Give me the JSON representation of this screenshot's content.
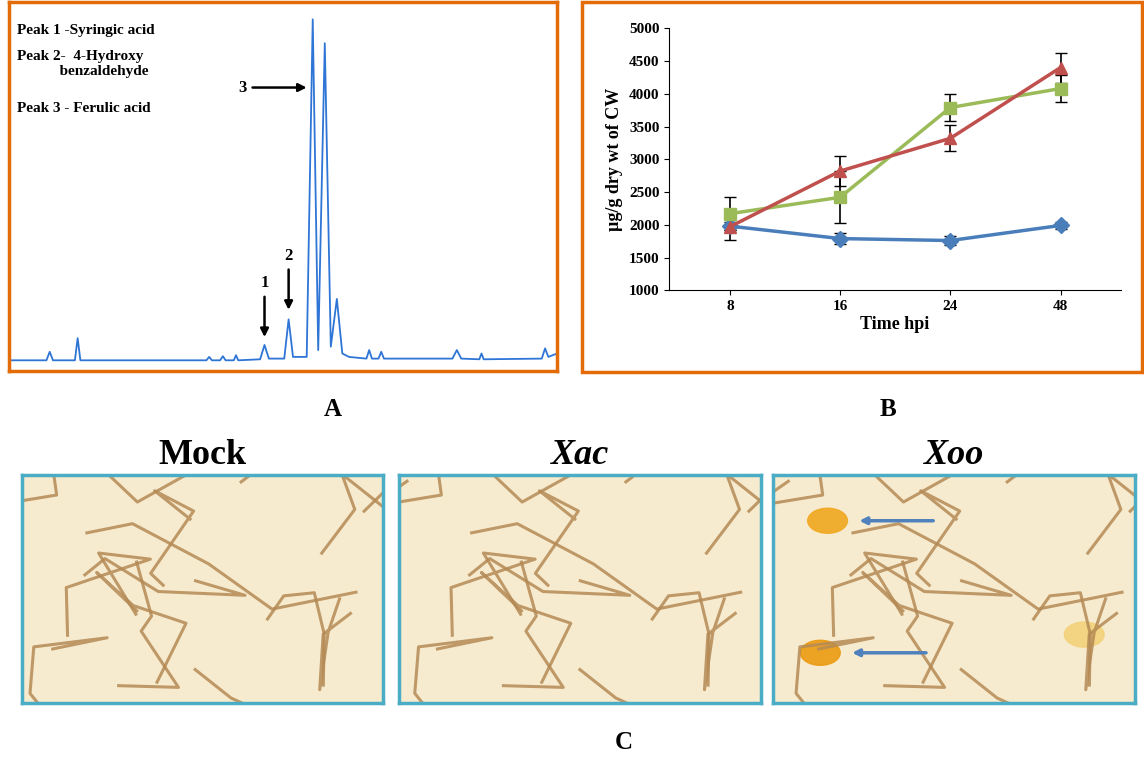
{
  "chart_data": [
    {
      "type": "line",
      "panel_label": "A",
      "notes": [
        "Peak 1 -Syringic acid",
        "Peak 2-  4-Hydroxy\n           benzaldehyde",
        "Peak 3 - Ferulic acid"
      ],
      "x": [
        0,
        6.8,
        7.4,
        8.0,
        12.0,
        12.5,
        13.0,
        36,
        36.5,
        37,
        38.5,
        39,
        39.5,
        41,
        41.4,
        41.8,
        45.8,
        46.6,
        47.4,
        50.2,
        51,
        51.8,
        54.3,
        55.4,
        56.4,
        57.6,
        58.7,
        59.8,
        60.8,
        62,
        65.2,
        65.7,
        66.2,
        67.4,
        67.9,
        68.4,
        80.9,
        81.7,
        82.5,
        85.8,
        86.2,
        86.6,
        97.2,
        97.8,
        98.4,
        100
      ],
      "values": [
        0,
        0,
        2.5,
        0,
        0,
        6.5,
        0,
        0,
        1,
        0,
        0,
        1.2,
        0,
        0,
        1.5,
        0,
        0.3,
        4.5,
        0.5,
        0.5,
        12,
        1,
        1,
        100,
        3,
        93,
        4,
        18,
        2,
        1,
        0.5,
        3,
        0.5,
        0.5,
        2.5,
        0.5,
        0.5,
        3,
        0.5,
        0.3,
        2,
        0.3,
        0.5,
        3.5,
        1,
        2
      ],
      "color": "#2e75d6",
      "xlim": [
        0,
        100
      ],
      "ylim": [
        -3,
        105
      ],
      "tick_labels": false,
      "annotations": [
        {
          "text": "1",
          "x": 46.6,
          "y": 6
        },
        {
          "text": "2",
          "x": 51,
          "y": 14
        },
        {
          "text": "3",
          "x": 54.8,
          "y": 80
        }
      ]
    },
    {
      "type": "line",
      "panel_label": "B",
      "categories": [
        "8",
        "16",
        "24",
        "48"
      ],
      "x_label": "Time hpi",
      "y_label": "µg/g dry wt of CW",
      "ylim": [
        1000,
        5000
      ],
      "yticks": [
        1000,
        1500,
        2000,
        2500,
        3000,
        3500,
        4000,
        4500,
        5000
      ],
      "series": [
        {
          "color": "#4a7ebb",
          "marker": "diamond",
          "values": [
            1980,
            1790,
            1760,
            1990
          ],
          "errors": [
            60,
            90,
            70,
            60
          ]
        },
        {
          "color": "#9bbb59",
          "marker": "square",
          "values": [
            2170,
            2420,
            3790,
            4080
          ],
          "errors": [
            250,
            400,
            200,
            200
          ]
        },
        {
          "color": "#c0504d",
          "marker": "triangle",
          "values": [
            1970,
            2820,
            3320,
            4400
          ],
          "errors": [
            200,
            230,
            200,
            230
          ]
        }
      ]
    }
  ],
  "images": {
    "panel_label": "C",
    "titles": [
      "Mock",
      "Xac",
      "Xoo"
    ]
  }
}
